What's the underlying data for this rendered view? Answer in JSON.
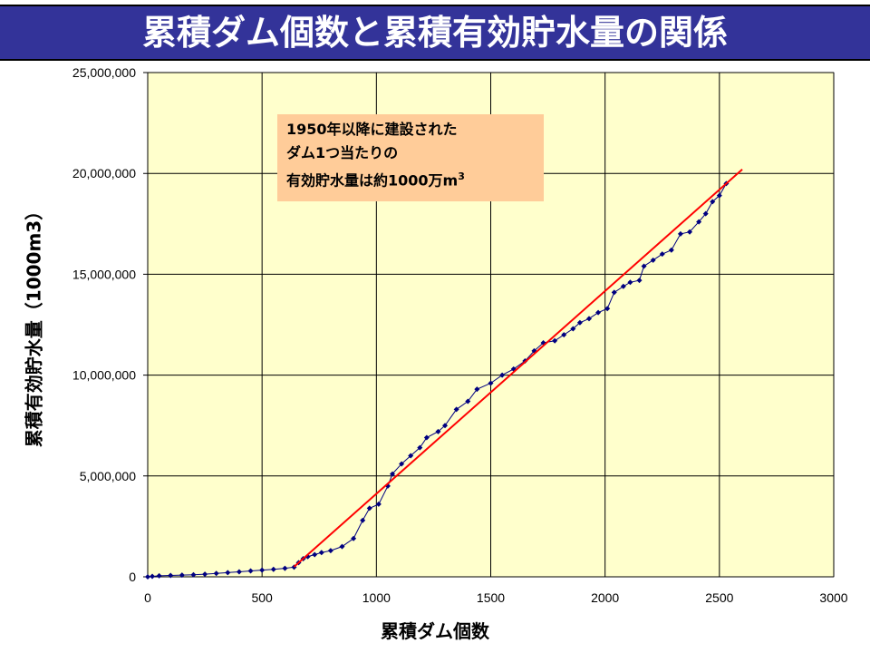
{
  "title": "累積ダム個数と累積有効貯水量の関係",
  "chart_data": {
    "type": "scatter",
    "xlabel": "累積ダム個数",
    "ylabel": "累積有効貯水量（1000m3）",
    "xlim": [
      0,
      3000
    ],
    "ylim": [
      0,
      25000000
    ],
    "xticks": [
      "0",
      "500",
      "1000",
      "1500",
      "2000",
      "2500",
      "3000"
    ],
    "yticks": [
      "0",
      "5,000,000",
      "10,000,000",
      "15,000,000",
      "20,000,000",
      "25,000,000"
    ],
    "grid": true,
    "plot_background": "#FFFFCC",
    "series": [
      {
        "type": "line-markers",
        "color": "#000080",
        "points": [
          [
            0,
            0
          ],
          [
            20,
            20000
          ],
          [
            50,
            50000
          ],
          [
            100,
            70000
          ],
          [
            150,
            85000
          ],
          [
            200,
            100000
          ],
          [
            250,
            130000
          ],
          [
            300,
            170000
          ],
          [
            350,
            210000
          ],
          [
            400,
            250000
          ],
          [
            450,
            290000
          ],
          [
            500,
            330000
          ],
          [
            550,
            370000
          ],
          [
            600,
            420000
          ],
          [
            640,
            480000
          ],
          [
            660,
            700000
          ],
          [
            680,
            900000
          ],
          [
            700,
            1000000
          ],
          [
            730,
            1100000
          ],
          [
            760,
            1200000
          ],
          [
            800,
            1300000
          ],
          [
            850,
            1500000
          ],
          [
            900,
            1900000
          ],
          [
            940,
            2800000
          ],
          [
            970,
            3400000
          ],
          [
            1010,
            3600000
          ],
          [
            1050,
            4500000
          ],
          [
            1070,
            5100000
          ],
          [
            1110,
            5600000
          ],
          [
            1150,
            6000000
          ],
          [
            1190,
            6400000
          ],
          [
            1220,
            6900000
          ],
          [
            1270,
            7200000
          ],
          [
            1300,
            7500000
          ],
          [
            1350,
            8300000
          ],
          [
            1400,
            8700000
          ],
          [
            1440,
            9300000
          ],
          [
            1500,
            9600000
          ],
          [
            1550,
            10000000
          ],
          [
            1600,
            10300000
          ],
          [
            1650,
            10700000
          ],
          [
            1690,
            11200000
          ],
          [
            1730,
            11600000
          ],
          [
            1780,
            11700000
          ],
          [
            1820,
            12000000
          ],
          [
            1860,
            12300000
          ],
          [
            1890,
            12600000
          ],
          [
            1930,
            12800000
          ],
          [
            1970,
            13100000
          ],
          [
            2010,
            13300000
          ],
          [
            2040,
            14100000
          ],
          [
            2080,
            14400000
          ],
          [
            2110,
            14600000
          ],
          [
            2150,
            14700000
          ],
          [
            2170,
            15400000
          ],
          [
            2210,
            15700000
          ],
          [
            2250,
            16000000
          ],
          [
            2290,
            16200000
          ],
          [
            2330,
            17000000
          ],
          [
            2370,
            17100000
          ],
          [
            2410,
            17600000
          ],
          [
            2440,
            18000000
          ],
          [
            2470,
            18600000
          ],
          [
            2500,
            18900000
          ],
          [
            2530,
            19500000
          ]
        ]
      },
      {
        "type": "trendline",
        "color": "#FF0000",
        "points": [
          [
            640,
            500000
          ],
          [
            2600,
            20200000
          ]
        ]
      }
    ],
    "annotation": {
      "lines": [
        "1950年以降に建設された",
        "ダム1つ当たりの",
        "有効貯水量は約1000万m",
        "3"
      ],
      "background": "#FFCC99"
    }
  }
}
